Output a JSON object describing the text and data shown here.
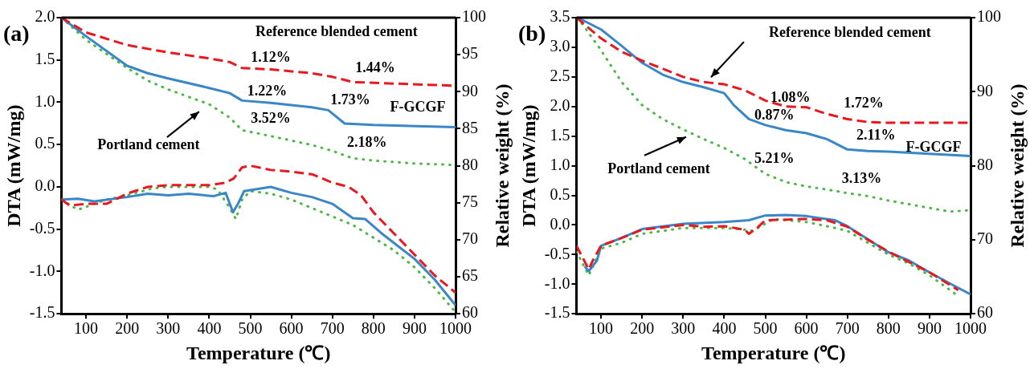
{
  "chart_data": [
    {
      "type": "line",
      "title": "(a)",
      "xlabel": "Temperature (℃)",
      "ylabel": "DTA (mW/mg)",
      "y2label": "Relative weight (%)",
      "xlim": [
        40,
        1000
      ],
      "xticks": [
        100,
        200,
        300,
        400,
        500,
        600,
        700,
        800,
        900,
        1000
      ],
      "ylim": [
        -1.5,
        2.0
      ],
      "yticks": [
        {
          "value": -1.5,
          "label": "-1.5"
        },
        {
          "value": -1,
          "label": "-1.0"
        },
        {
          "value": -0.5,
          "label": "-0.5"
        },
        {
          "value": 0,
          "label": "0.0"
        },
        {
          "value": 0.5,
          "label": "0.5"
        },
        {
          "value": 1,
          "label": "1.0"
        },
        {
          "value": 1.5,
          "label": "1.5"
        },
        {
          "value": 2,
          "label": "2.0"
        }
      ],
      "y2lim": [
        60,
        100
      ],
      "y2ticks": [
        60,
        65,
        70,
        75,
        80,
        85,
        90,
        95,
        100
      ],
      "series": [
        {
          "color": "#e8191e",
          "line_style": "dashed",
          "x": [
            40,
            60,
            100,
            150,
            200,
            250,
            300,
            350,
            400,
            440,
            460,
            480,
            500,
            550,
            600,
            650,
            700,
            740,
            770,
            800,
            850,
            900,
            950,
            1000
          ],
          "values": [
            -0.15,
            -0.22,
            -0.2,
            -0.2,
            -0.08,
            0.0,
            0.02,
            0.02,
            0.02,
            0.05,
            0.1,
            0.23,
            0.25,
            0.2,
            0.18,
            0.15,
            0.05,
            0.0,
            -0.1,
            -0.3,
            -0.55,
            -0.8,
            -1.05,
            -1.25
          ]
        },
        {
          "color": "#3a87c8",
          "line_style": "solid",
          "x": [
            40,
            80,
            120,
            200,
            250,
            300,
            350,
            410,
            440,
            458,
            470,
            485,
            550,
            600,
            650,
            700,
            750,
            780,
            820,
            900,
            950,
            1000
          ],
          "values": [
            -0.15,
            -0.14,
            -0.17,
            -0.12,
            -0.08,
            -0.1,
            -0.08,
            -0.11,
            -0.07,
            -0.3,
            -0.2,
            -0.05,
            0.0,
            -0.07,
            -0.12,
            -0.2,
            -0.37,
            -0.38,
            -0.55,
            -0.85,
            -1.1,
            -1.4
          ]
        },
        {
          "color": "#4db848",
          "line_style": "dotted",
          "x": [
            40,
            80,
            150,
            200,
            260,
            300,
            400,
            420,
            450,
            465,
            480,
            500,
            550,
            600,
            650,
            700,
            750,
            800,
            850,
            900,
            950,
            1000
          ],
          "values": [
            -0.15,
            -0.27,
            -0.15,
            -0.1,
            -0.02,
            0.0,
            0.0,
            -0.03,
            -0.25,
            -0.38,
            -0.15,
            -0.05,
            -0.08,
            -0.15,
            -0.25,
            -0.35,
            -0.45,
            -0.6,
            -0.75,
            -0.95,
            -1.2,
            -1.48
          ]
        },
        {
          "color": "#e8191e",
          "line_style": "dashed",
          "axis": "y2",
          "x": [
            40,
            100,
            200,
            300,
            400,
            450,
            480,
            550,
            650,
            700,
            750,
            850,
            1000
          ],
          "values": [
            100,
            98,
            96.3,
            95.3,
            94.5,
            94,
            93.2,
            93,
            92.5,
            92,
            91.3,
            91.1,
            90.8
          ]
        },
        {
          "color": "#3a87c8",
          "line_style": "solid",
          "axis": "y2",
          "x": [
            40,
            100,
            200,
            250,
            300,
            400,
            450,
            480,
            550,
            650,
            690,
            730,
            800,
            1000
          ],
          "values": [
            100,
            97.5,
            93.5,
            92.5,
            91.8,
            90.5,
            89.8,
            88.8,
            88.5,
            87.9,
            87.5,
            85.7,
            85.5,
            85.2
          ]
        },
        {
          "color": "#4db848",
          "line_style": "dotted",
          "axis": "y2",
          "x": [
            40,
            100,
            200,
            250,
            300,
            400,
            450,
            480,
            550,
            650,
            700,
            750,
            800,
            900,
            1000
          ],
          "values": [
            100,
            97,
            93.2,
            91.5,
            90.3,
            88.3,
            86.5,
            84.8,
            84,
            82.8,
            82,
            81,
            80.7,
            80.3,
            80.1
          ]
        }
      ],
      "annotations": [
        "Reference blended cement",
        "1.12%",
        "1.44%",
        "1.22%",
        "1.73%",
        "F-GCGF",
        "3.52%",
        "2.18%",
        "Portland cement"
      ]
    },
    {
      "type": "line",
      "title": "(b)",
      "xlabel": "Temperature (℃)",
      "ylabel": "DTA (mW/mg)",
      "y2label": "Relative weight (%)",
      "xlim": [
        40,
        1000
      ],
      "xticks": [
        100,
        200,
        300,
        400,
        500,
        600,
        700,
        800,
        900,
        1000
      ],
      "ylim": [
        -1.5,
        3.5
      ],
      "yticks": [
        {
          "value": -1.5,
          "label": "-1.5"
        },
        {
          "value": -1,
          "label": "-1.0"
        },
        {
          "value": -0.5,
          "label": "-0.5"
        },
        {
          "value": 0,
          "label": "0.0"
        },
        {
          "value": 0.5,
          "label": "0.5"
        },
        {
          "value": 1,
          "label": "1.0"
        },
        {
          "value": 1.5,
          "label": "1.5"
        },
        {
          "value": 2,
          "label": "2.0"
        },
        {
          "value": 2.5,
          "label": "2.5"
        },
        {
          "value": 3,
          "label": "3.0"
        },
        {
          "value": 3.5,
          "label": "3.5"
        }
      ],
      "y2lim": [
        60,
        100
      ],
      "y2ticks": [
        60,
        70,
        80,
        90,
        100
      ],
      "series": [
        {
          "color": "#e8191e",
          "line_style": "dashed",
          "x": [
            40,
            70,
            80,
            100,
            150,
            200,
            300,
            350,
            400,
            450,
            460,
            480,
            500,
            600,
            650,
            700,
            750,
            800,
            900,
            970
          ],
          "values": [
            -0.35,
            -0.75,
            -0.6,
            -0.35,
            -0.22,
            -0.08,
            0.0,
            -0.03,
            -0.02,
            -0.08,
            -0.15,
            -0.05,
            0.08,
            0.1,
            0.08,
            -0.03,
            -0.25,
            -0.45,
            -0.8,
            -1.1
          ]
        },
        {
          "color": "#3a87c8",
          "line_style": "solid",
          "x": [
            60,
            70,
            90,
            100,
            150,
            200,
            300,
            400,
            460,
            500,
            550,
            600,
            670,
            700,
            750,
            800,
            850,
            900,
            950,
            1000
          ],
          "values": [
            -0.7,
            -0.78,
            -0.6,
            -0.35,
            -0.22,
            -0.07,
            0.02,
            0.05,
            0.08,
            0.16,
            0.17,
            0.15,
            0.08,
            -0.02,
            -0.24,
            -0.46,
            -0.6,
            -0.8,
            -0.99,
            -1.17
          ]
        },
        {
          "color": "#4db848",
          "line_style": "dotted",
          "x": [
            40,
            70,
            100,
            150,
            200,
            300,
            350,
            400,
            450,
            470,
            490,
            520,
            600,
            650,
            700,
            750,
            800,
            850,
            900,
            970
          ],
          "values": [
            -0.45,
            -0.85,
            -0.4,
            -0.3,
            -0.15,
            -0.05,
            -0.05,
            -0.05,
            -0.08,
            -0.1,
            -0.02,
            0.1,
            0.05,
            -0.02,
            -0.1,
            -0.3,
            -0.5,
            -0.65,
            -0.85,
            -1.2
          ]
        },
        {
          "color": "#e8191e",
          "line_style": "dashed",
          "axis": "y2",
          "x": [
            40,
            100,
            150,
            200,
            250,
            300,
            350,
            400,
            450,
            500,
            550,
            600,
            650,
            700,
            750,
            800,
            1000
          ],
          "values": [
            100,
            97.2,
            95.4,
            94.2,
            93.1,
            92,
            91.3,
            91,
            90.2,
            88.8,
            88,
            87.9,
            87,
            86.3,
            85.9,
            85.8,
            85.8
          ]
        },
        {
          "color": "#3a87c8",
          "line_style": "solid",
          "axis": "y2",
          "x": [
            43,
            100,
            150,
            200,
            250,
            300,
            350,
            400,
            423,
            460,
            500,
            550,
            600,
            650,
            700,
            750,
            800,
            900,
            1000
          ],
          "values": [
            100,
            98.4,
            96.2,
            93.9,
            92.3,
            91.3,
            90.6,
            89.8,
            88.2,
            86.3,
            85.5,
            84.8,
            84.4,
            83.6,
            82.2,
            82,
            81.9,
            81.6,
            81.3
          ]
        },
        {
          "color": "#4db848",
          "line_style": "dotted",
          "axis": "y2",
          "x": [
            43,
            100,
            150,
            200,
            250,
            300,
            350,
            400,
            450,
            500,
            550,
            600,
            650,
            700,
            750,
            800,
            850,
            900,
            950,
            1000
          ],
          "values": [
            100,
            95.6,
            91.3,
            88.2,
            86.3,
            84.9,
            83.6,
            82.4,
            80.9,
            78.9,
            77.8,
            77.2,
            76.8,
            76.3,
            75.9,
            75.3,
            74.8,
            74.3,
            73.8,
            74.0
          ]
        }
      ],
      "annotations": [
        "Reference blended cement",
        "1.08%",
        "1.72%",
        "0.87%",
        "2.11%",
        "F-GCGF",
        "5.21%",
        "3.13%",
        "Portland cement"
      ]
    }
  ]
}
